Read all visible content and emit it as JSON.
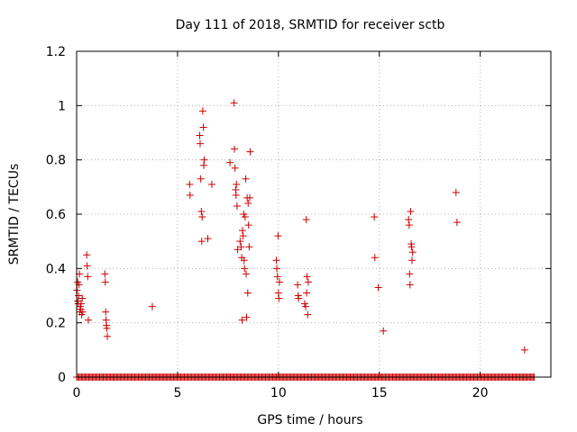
{
  "chart_data": {
    "type": "scatter",
    "title": "Day 111 of 2018, SRMTID for receiver sctb",
    "xlabel": "GPS time / hours",
    "ylabel": "SRMTID / TECUs",
    "xlim": [
      0,
      23.5
    ],
    "ylim": [
      0,
      1.2
    ],
    "x_ticks": [
      0,
      5,
      10,
      15,
      20
    ],
    "x_tick_labels": [
      "0",
      "5",
      "10",
      "15",
      "20"
    ],
    "y_ticks": [
      0,
      0.2,
      0.4,
      0.6,
      0.8,
      1.0,
      1.2
    ],
    "y_tick_labels": [
      "0",
      "0.2",
      "0.4",
      "0.6",
      "0.8",
      "1",
      "1.2"
    ],
    "grid": true,
    "marker": "+",
    "color": "#cc0000",
    "series": [
      {
        "name": "sctb",
        "points": [
          [
            0.02,
            0.32
          ],
          [
            0.05,
            0.35
          ],
          [
            0.06,
            0.28
          ],
          [
            0.08,
            0.27
          ],
          [
            0.1,
            0.3
          ],
          [
            0.12,
            0.34
          ],
          [
            0.14,
            0.38
          ],
          [
            0.15,
            0.24
          ],
          [
            0.18,
            0.26
          ],
          [
            0.2,
            0.25
          ],
          [
            0.22,
            0.27
          ],
          [
            0.25,
            0.23
          ],
          [
            0.28,
            0.29
          ],
          [
            0.3,
            0.24
          ],
          [
            0.5,
            0.45
          ],
          [
            0.52,
            0.41
          ],
          [
            0.55,
            0.37
          ],
          [
            0.58,
            0.21
          ],
          [
            1.4,
            0.38
          ],
          [
            1.42,
            0.35
          ],
          [
            1.44,
            0.24
          ],
          [
            1.46,
            0.21
          ],
          [
            1.48,
            0.19
          ],
          [
            1.5,
            0.18
          ],
          [
            1.52,
            0.15
          ],
          [
            3.75,
            0.26
          ],
          [
            5.6,
            0.71
          ],
          [
            5.62,
            0.67
          ],
          [
            6.1,
            0.89
          ],
          [
            6.12,
            0.86
          ],
          [
            6.15,
            0.73
          ],
          [
            6.18,
            0.61
          ],
          [
            6.2,
            0.5
          ],
          [
            6.22,
            0.59
          ],
          [
            6.25,
            0.98
          ],
          [
            6.28,
            0.92
          ],
          [
            6.3,
            0.78
          ],
          [
            6.32,
            0.8
          ],
          [
            6.5,
            0.51
          ],
          [
            6.7,
            0.71
          ],
          [
            7.6,
            0.79
          ],
          [
            7.8,
            1.01
          ],
          [
            7.82,
            0.84
          ],
          [
            7.85,
            0.77
          ],
          [
            7.88,
            0.69
          ],
          [
            7.9,
            0.67
          ],
          [
            7.92,
            0.71
          ],
          [
            7.95,
            0.63
          ],
          [
            7.98,
            0.47
          ],
          [
            8.1,
            0.5
          ],
          [
            8.15,
            0.48
          ],
          [
            8.18,
            0.44
          ],
          [
            8.2,
            0.21
          ],
          [
            8.22,
            0.54
          ],
          [
            8.25,
            0.52
          ],
          [
            8.28,
            0.6
          ],
          [
            8.3,
            0.43
          ],
          [
            8.32,
            0.4
          ],
          [
            8.35,
            0.59
          ],
          [
            8.38,
            0.73
          ],
          [
            8.4,
            0.38
          ],
          [
            8.42,
            0.22
          ],
          [
            8.45,
            0.66
          ],
          [
            8.48,
            0.31
          ],
          [
            8.5,
            0.64
          ],
          [
            8.52,
            0.56
          ],
          [
            8.55,
            0.48
          ],
          [
            8.58,
            0.66
          ],
          [
            8.6,
            0.83
          ],
          [
            9.9,
            0.43
          ],
          [
            9.92,
            0.4
          ],
          [
            9.95,
            0.37
          ],
          [
            9.98,
            0.52
          ],
          [
            10.0,
            0.31
          ],
          [
            10.02,
            0.29
          ],
          [
            10.05,
            0.35
          ],
          [
            10.95,
            0.34
          ],
          [
            10.98,
            0.3
          ],
          [
            11.0,
            0.29
          ],
          [
            11.3,
            0.27
          ],
          [
            11.35,
            0.26
          ],
          [
            11.38,
            0.58
          ],
          [
            11.4,
            0.31
          ],
          [
            11.42,
            0.37
          ],
          [
            11.45,
            0.23
          ],
          [
            11.48,
            0.35
          ],
          [
            14.75,
            0.59
          ],
          [
            14.78,
            0.44
          ],
          [
            14.95,
            0.33
          ],
          [
            15.2,
            0.17
          ],
          [
            16.45,
            0.58
          ],
          [
            16.48,
            0.56
          ],
          [
            16.5,
            0.38
          ],
          [
            16.52,
            0.34
          ],
          [
            16.55,
            0.61
          ],
          [
            16.58,
            0.49
          ],
          [
            16.6,
            0.48
          ],
          [
            16.62,
            0.43
          ],
          [
            16.65,
            0.46
          ],
          [
            18.8,
            0.68
          ],
          [
            18.85,
            0.57
          ],
          [
            22.2,
            0.1
          ]
        ]
      }
    ],
    "zero_band": [
      [
        0,
        22.7
      ]
    ]
  }
}
